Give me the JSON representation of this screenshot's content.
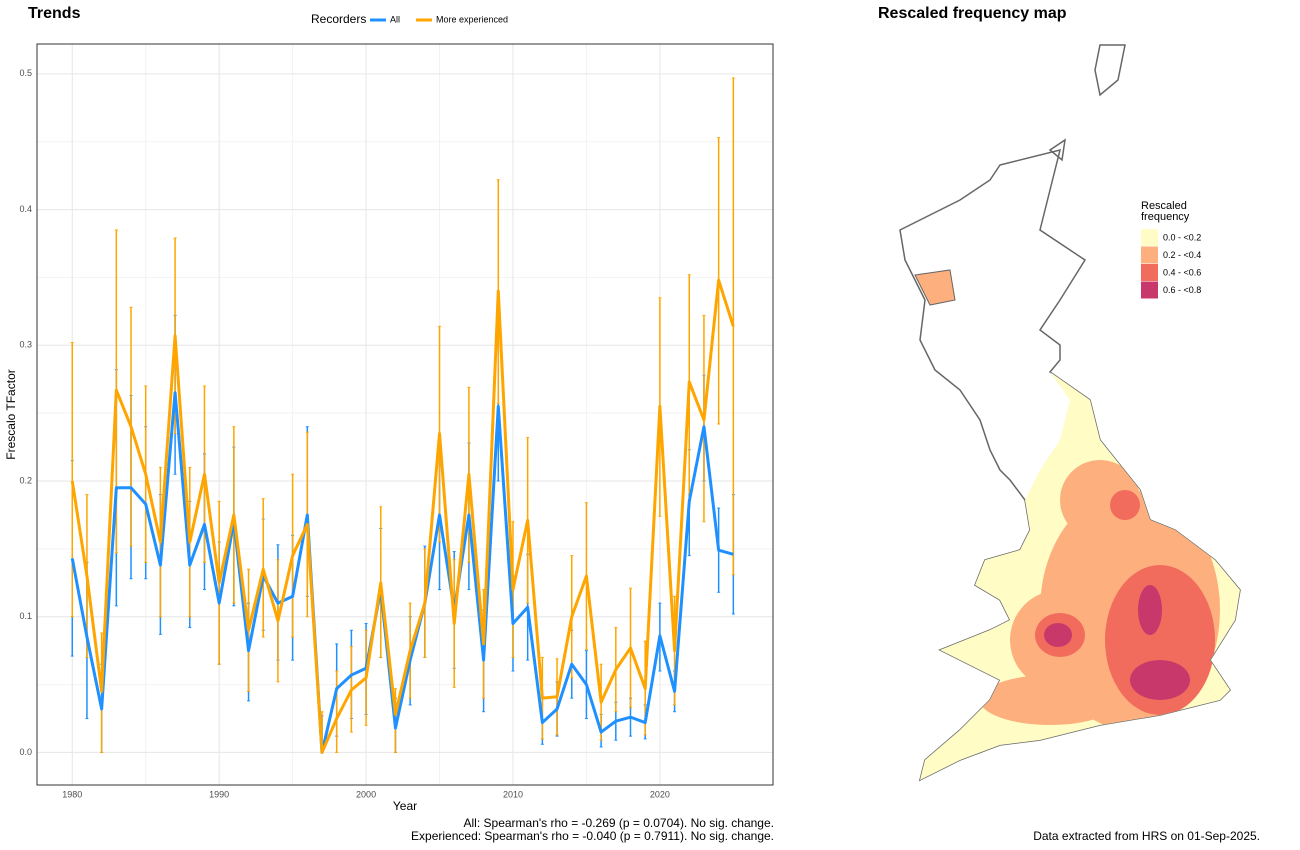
{
  "chart_data": {
    "type": "line",
    "title": "Trends",
    "xlabel": "Year",
    "ylabel": "Frescalo TFactor",
    "legend_title": "Recorders",
    "legend": "top",
    "grid": true,
    "x": [
      1980,
      1981,
      1982,
      1983,
      1984,
      1985,
      1986,
      1987,
      1988,
      1989,
      1990,
      1991,
      1992,
      1993,
      1994,
      1995,
      1996,
      1997,
      1998,
      1999,
      2000,
      2001,
      2002,
      2003,
      2004,
      2005,
      2006,
      2007,
      2008,
      2009,
      2010,
      2011,
      2012,
      2013,
      2014,
      2015,
      2016,
      2017,
      2018,
      2019,
      2020,
      2021,
      2022,
      2023,
      2024,
      2025
    ],
    "series": [
      {
        "name": "All",
        "color": "#1e90ff",
        "values": [
          0.143,
          0.085,
          0.032,
          0.195,
          0.195,
          0.183,
          0.138,
          0.265,
          0.138,
          0.168,
          0.11,
          0.17,
          0.075,
          0.13,
          0.11,
          0.115,
          0.175,
          0.0,
          0.047,
          0.057,
          0.062,
          0.12,
          0.018,
          0.068,
          0.11,
          0.175,
          0.105,
          0.175,
          0.068,
          0.255,
          0.095,
          0.107,
          0.022,
          0.032,
          0.065,
          0.05,
          0.015,
          0.023,
          0.026,
          0.022,
          0.086,
          0.045,
          0.185,
          0.24,
          0.149,
          0.146
        ],
        "lower": [
          0.071,
          0.025,
          0.0,
          0.108,
          0.128,
          0.128,
          0.087,
          0.205,
          0.092,
          0.12,
          0.065,
          0.108,
          0.038,
          0.09,
          0.068,
          0.068,
          0.115,
          0.0,
          0.012,
          0.025,
          0.028,
          0.07,
          0.0,
          0.035,
          0.07,
          0.12,
          0.062,
          0.12,
          0.03,
          0.2,
          0.06,
          0.068,
          0.006,
          0.012,
          0.04,
          0.025,
          0.004,
          0.009,
          0.012,
          0.01,
          0.06,
          0.03,
          0.145,
          0.2,
          0.118,
          0.102
        ],
        "upper": [
          0.215,
          0.14,
          0.065,
          0.282,
          0.263,
          0.24,
          0.19,
          0.322,
          0.185,
          0.22,
          0.155,
          0.225,
          0.11,
          0.172,
          0.153,
          0.16,
          0.24,
          0.027,
          0.08,
          0.09,
          0.095,
          0.165,
          0.04,
          0.1,
          0.152,
          0.233,
          0.148,
          0.228,
          0.105,
          0.315,
          0.13,
          0.146,
          0.04,
          0.052,
          0.09,
          0.075,
          0.028,
          0.037,
          0.04,
          0.035,
          0.11,
          0.06,
          0.223,
          0.278,
          0.18,
          0.19
        ]
      },
      {
        "name": "More experienced",
        "color": "#ffa500",
        "values": [
          0.2,
          0.13,
          0.045,
          0.267,
          0.24,
          0.205,
          0.155,
          0.307,
          0.155,
          0.205,
          0.125,
          0.175,
          0.09,
          0.135,
          0.097,
          0.145,
          0.168,
          0.0,
          0.025,
          0.046,
          0.055,
          0.125,
          0.028,
          0.075,
          0.11,
          0.235,
          0.095,
          0.205,
          0.08,
          0.34,
          0.12,
          0.171,
          0.04,
          0.041,
          0.1,
          0.13,
          0.037,
          0.061,
          0.077,
          0.047,
          0.255,
          0.075,
          0.273,
          0.245,
          0.348,
          0.314
        ],
        "lower": [
          0.1,
          0.07,
          0.0,
          0.147,
          0.152,
          0.14,
          0.1,
          0.235,
          0.1,
          0.14,
          0.065,
          0.11,
          0.045,
          0.085,
          0.052,
          0.085,
          0.1,
          0.0,
          0.0,
          0.015,
          0.02,
          0.07,
          0.0,
          0.04,
          0.07,
          0.155,
          0.048,
          0.14,
          0.04,
          0.257,
          0.07,
          0.11,
          0.01,
          0.013,
          0.055,
          0.076,
          0.009,
          0.03,
          0.033,
          0.013,
          0.174,
          0.035,
          0.19,
          0.17,
          0.242,
          0.131
        ],
        "upper": [
          0.302,
          0.19,
          0.088,
          0.385,
          0.328,
          0.27,
          0.21,
          0.379,
          0.21,
          0.27,
          0.185,
          0.24,
          0.135,
          0.187,
          0.142,
          0.205,
          0.236,
          0.03,
          0.06,
          0.078,
          0.09,
          0.181,
          0.047,
          0.11,
          0.15,
          0.314,
          0.142,
          0.269,
          0.12,
          0.422,
          0.17,
          0.232,
          0.07,
          0.069,
          0.145,
          0.184,
          0.065,
          0.092,
          0.121,
          0.082,
          0.335,
          0.115,
          0.352,
          0.322,
          0.453,
          0.497
        ]
      }
    ],
    "xlim": [
      1977.6,
      2027.7
    ],
    "ylim": [
      -0.024,
      0.522
    ],
    "xticks": [
      1980,
      1990,
      2000,
      2010,
      2020
    ],
    "yticks": [
      {
        "value": 0,
        "label": "0.0"
      },
      0.1,
      0.2,
      0.3,
      0.4,
      0.5
    ],
    "annotations": [
      "All: Spearman's rho = -0.269 (p = 0.0704). No sig. change.",
      "Experienced: Spearman's rho = -0.040 (p = 0.7911). No sig. change."
    ]
  },
  "map": {
    "title": "Rescaled frequency map",
    "legend_title": "Rescaled frequency",
    "legend": [
      {
        "label": "0.0 - <0.2",
        "color": "#fffcc6"
      },
      {
        "label": "0.2 - <0.4",
        "color": "#fdb07d"
      },
      {
        "label": "0.4 - <0.6",
        "color": "#f26c5d"
      },
      {
        "label": "0.6 - <0.8",
        "color": "#c9386b"
      }
    ],
    "note": "Data extracted from HRS on 01-Sep-2025."
  }
}
